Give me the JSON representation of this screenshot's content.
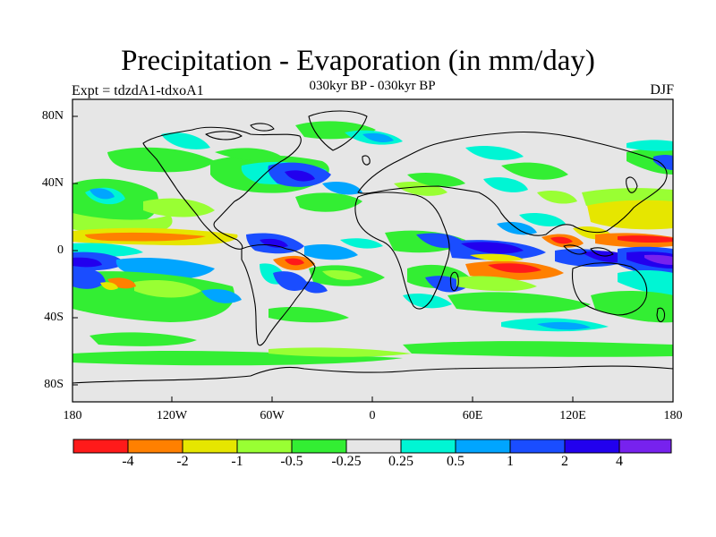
{
  "header": {
    "title": "Precipitation - Evaporation (in mm/day)",
    "subtitle": "030kyr BP - 030kyr BP",
    "experiment": "Expt = tdzdA1-tdxoA1",
    "season": "DJF"
  },
  "axes": {
    "lat_labels": [
      "80N",
      "40N",
      "0",
      "40S",
      "80S"
    ],
    "lon_labels": [
      "180",
      "120W",
      "60W",
      "0",
      "60E",
      "120E",
      "180"
    ]
  },
  "colorbar": {
    "colors": [
      "#ff1a1a",
      "#ff8000",
      "#e6e600",
      "#99ff33",
      "#33ee33",
      "#e6e6e6",
      "#00f5d4",
      "#00a5ff",
      "#1a4dff",
      "#2200ee",
      "#7722ee"
    ],
    "labels": [
      "-4",
      "-2",
      "-1",
      "-0.5",
      "-0.25",
      "0.25",
      "0.5",
      "1",
      "2",
      "4"
    ]
  }
}
